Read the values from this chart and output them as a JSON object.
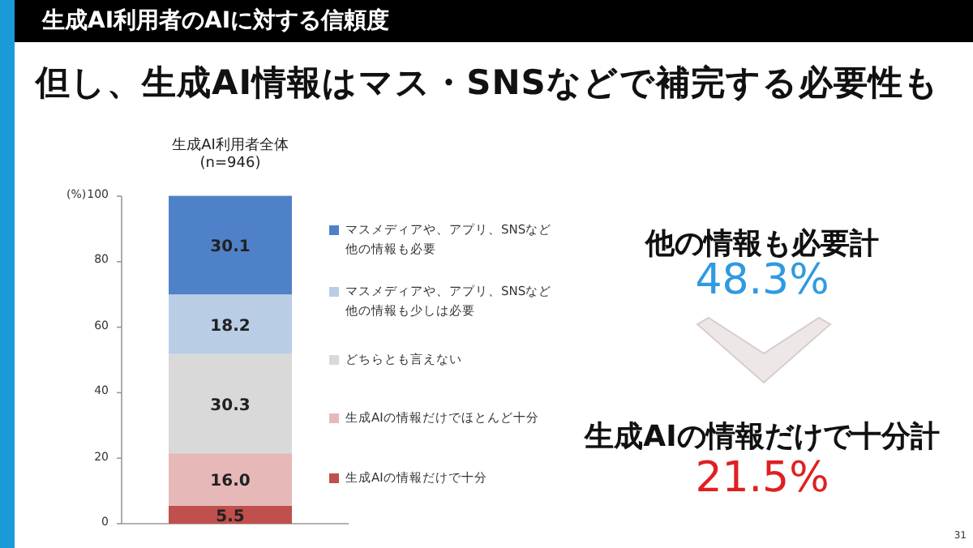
{
  "chart_data": {
    "type": "bar",
    "stacked": true,
    "title": "生成AI利用者のAIに対する信頼度",
    "subtitle": "但し、生成AI情報はマス・SNSなどで補完する必要性も",
    "ylabel": "(%)",
    "categories": [
      "生成AI利用者全体 (n=946)"
    ],
    "series": [
      {
        "name": "生成AIの情報だけで十分",
        "color": "#c0504d",
        "values": [
          5.5
        ],
        "value_labels": [
          "5.5"
        ]
      },
      {
        "name": "生成AIの情報だけでほとんど十分",
        "color": "#e6b9b8",
        "values": [
          16.0
        ],
        "value_labels": [
          "16.0"
        ]
      },
      {
        "name": "どちらとも言えない",
        "color": "#d9d9d9",
        "values": [
          30.3
        ],
        "value_labels": [
          "30.3"
        ]
      },
      {
        "name": "マスメディアや、アプリ、SNSなど他の情報も少しは必要",
        "color": "#b9cde5",
        "values": [
          18.2
        ],
        "value_labels": [
          "18.2"
        ]
      },
      {
        "name": "マスメディアや、アプリ、SNSなど他の情報も必要",
        "color": "#4f81c8",
        "values": [
          30.1
        ],
        "value_labels": [
          "30.1"
        ]
      }
    ],
    "ylim": [
      0,
      100
    ],
    "yticks": [
      0,
      20,
      40,
      60,
      80,
      100
    ],
    "legend": "right",
    "grid": false,
    "annotations": [
      "他の情報も必要計",
      "48.3%",
      "生成AIの情報だけで十分計",
      "21.5%",
      "31"
    ]
  }
}
